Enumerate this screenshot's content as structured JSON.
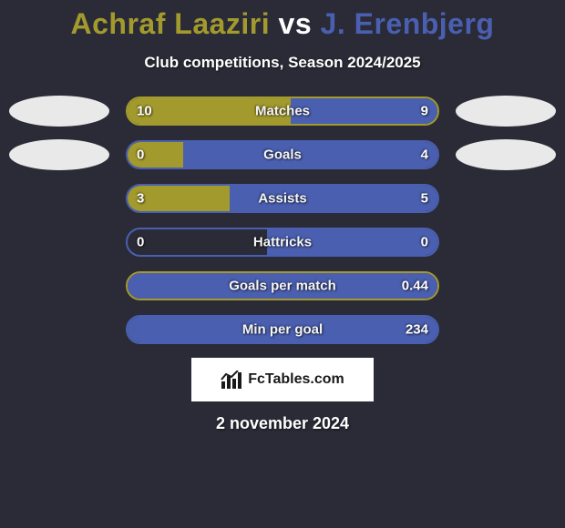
{
  "title": {
    "player1": "Achraf Laaziri",
    "vs": "vs",
    "player2": "J. Erenbjerg",
    "p1_color": "#a39a2e",
    "p2_color": "#4a5fb0"
  },
  "subtitle": "Club competitions, Season 2024/2025",
  "colors": {
    "background": "#2a2b36",
    "p1": "#a39a2e",
    "p2": "#4a5fb0",
    "oval": "#e9e9e9",
    "text": "#ffffff"
  },
  "bars": [
    {
      "label": "Matches",
      "left_val": "10",
      "right_val": "9",
      "left_pct": 52.6,
      "right_pct": 47.4,
      "show_ovals": true,
      "border_color": "#a39a2e"
    },
    {
      "label": "Goals",
      "left_val": "0",
      "right_val": "4",
      "left_pct": 18,
      "right_pct": 82,
      "show_ovals": true,
      "border_color": "#4a5fb0"
    },
    {
      "label": "Assists",
      "left_val": "3",
      "right_val": "5",
      "left_pct": 33,
      "right_pct": 67,
      "show_ovals": false,
      "border_color": "#4a5fb0"
    },
    {
      "label": "Hattricks",
      "left_val": "0",
      "right_val": "0",
      "left_pct": 0,
      "right_pct": 55,
      "show_ovals": false,
      "border_color": "#4a5fb0"
    },
    {
      "label": "Goals per match",
      "left_val": "",
      "right_val": "0.44",
      "left_pct": 0,
      "right_pct": 100,
      "show_ovals": false,
      "border_color": "#a39a2e"
    },
    {
      "label": "Min per goal",
      "left_val": "",
      "right_val": "234",
      "left_pct": 0,
      "right_pct": 100,
      "show_ovals": false,
      "border_color": "#4a5fb0"
    }
  ],
  "logo_text": "FcTables.com",
  "date": "2 november 2024"
}
